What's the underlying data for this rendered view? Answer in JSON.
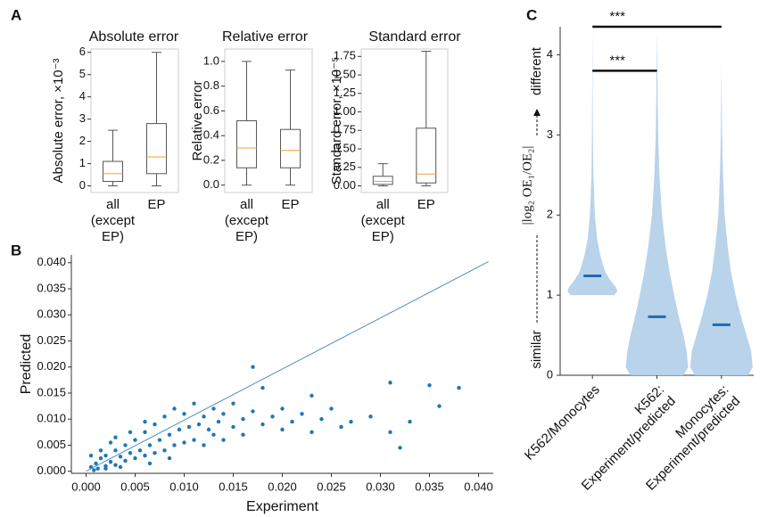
{
  "chart_data": [
    {
      "type": "box",
      "panel": "A",
      "title": "Absolute error",
      "ylabel": "Absolute error, ×10⁻³",
      "categories": [
        "all\n(except\nEP)",
        "EP"
      ],
      "boxes": [
        {
          "low": 0,
          "q1": 0.2,
          "median": 0.55,
          "q3": 1.1,
          "high": 2.5
        },
        {
          "low": 0,
          "q1": 0.55,
          "median": 1.3,
          "q3": 2.8,
          "high": 6.0
        }
      ],
      "color": "#555555",
      "median_color": "#f0a030",
      "ylim": [
        -0.3,
        6.15
      ],
      "yticks": [
        0,
        1,
        2,
        3,
        4,
        5,
        6
      ]
    },
    {
      "type": "box",
      "title": "Relative error",
      "ylabel": "Relative error",
      "categories": [
        "all\n(except\nEP)",
        "EP"
      ],
      "boxes": [
        {
          "low": 0,
          "q1": 0.14,
          "median": 0.3,
          "q3": 0.52,
          "high": 1.0
        },
        {
          "low": 0,
          "q1": 0.14,
          "median": 0.28,
          "q3": 0.45,
          "high": 0.93
        }
      ],
      "color": "#555555",
      "median_color": "#f0a030",
      "ylim": [
        -0.06,
        1.1
      ],
      "yticks": [
        {
          "value": 0,
          "label": "0.0"
        },
        0.2,
        0.4,
        0.6,
        0.8,
        {
          "value": 1,
          "label": "1.0"
        }
      ]
    },
    {
      "type": "box",
      "title": "Standard error",
      "ylabel": "Standard error, ×10⁻⁵",
      "categories": [
        "all\n(except\nEP)",
        "EP"
      ],
      "boxes": [
        {
          "low": 0,
          "q1": 0.02,
          "median": 0.06,
          "q3": 0.13,
          "high": 0.3
        },
        {
          "low": 0,
          "q1": 0.04,
          "median": 0.16,
          "q3": 0.78,
          "high": 1.82
        }
      ],
      "color": "#555555",
      "median_color": "#f0a030",
      "ylim": [
        -0.09,
        1.85
      ],
      "yticks": [
        {
          "value": 0,
          "label": "0.00"
        },
        0.25,
        {
          "value": 0.5,
          "label": "0.50"
        },
        0.75,
        {
          "value": 1,
          "label": "1.00"
        },
        1.25,
        {
          "value": 1.5,
          "label": "1.50"
        },
        1.75
      ]
    },
    {
      "type": "scatter",
      "panel": "B",
      "xlabel": "Experiment",
      "ylabel": "Predicted",
      "color": "#1f77b4",
      "x": [
        0.0005,
        0.001,
        0.0012,
        0.0015,
        0.002,
        0.002,
        0.0025,
        0.003,
        0.003,
        0.0035,
        0.004,
        0.004,
        0.0045,
        0.005,
        0.005,
        0.0055,
        0.006,
        0.006,
        0.0065,
        0.007,
        0.007,
        0.0075,
        0.008,
        0.008,
        0.0085,
        0.009,
        0.009,
        0.0095,
        0.01,
        0.01,
        0.0105,
        0.011,
        0.011,
        0.0115,
        0.012,
        0.012,
        0.0125,
        0.013,
        0.013,
        0.0135,
        0.014,
        0.014,
        0.015,
        0.015,
        0.016,
        0.016,
        0.017,
        0.017,
        0.018,
        0.018,
        0.019,
        0.02,
        0.02,
        0.021,
        0.022,
        0.023,
        0.023,
        0.024,
        0.025,
        0.026,
        0.027,
        0.029,
        0.031,
        0.031,
        0.032,
        0.033,
        0.035,
        0.036,
        0.038,
        0.002,
        0.0035,
        0.0008,
        0.003,
        0.0045,
        0.0015,
        0.006,
        0.0005,
        0.0065,
        0.0085,
        0.0025
      ],
      "y": [
        0.0008,
        0.0015,
        0.0005,
        0.0025,
        0.001,
        0.003,
        0.0018,
        0.004,
        0.0012,
        0.0028,
        0.005,
        0.002,
        0.0035,
        0.006,
        0.0025,
        0.004,
        0.0075,
        0.003,
        0.005,
        0.009,
        0.0035,
        0.006,
        0.0105,
        0.004,
        0.007,
        0.012,
        0.005,
        0.008,
        0.011,
        0.0055,
        0.0085,
        0.013,
        0.006,
        0.009,
        0.0105,
        0.005,
        0.008,
        0.012,
        0.007,
        0.0095,
        0.011,
        0.006,
        0.0085,
        0.013,
        0.01,
        0.007,
        0.02,
        0.0115,
        0.009,
        0.016,
        0.0105,
        0.008,
        0.012,
        0.0095,
        0.011,
        0.0145,
        0.0075,
        0.01,
        0.012,
        0.0085,
        0.0095,
        0.0105,
        0.017,
        0.0075,
        0.0045,
        0.0095,
        0.0165,
        0.0125,
        0.016,
        0.0005,
        0.0008,
        0.0002,
        0.0065,
        0.0075,
        0.004,
        0.0095,
        0.003,
        0.0015,
        0.0025,
        0.0055
      ],
      "reference_line": {
        "x": [
          0,
          0.041
        ],
        "y": [
          0,
          0.0402
        ],
        "color": "#4a90c2"
      },
      "xlim": [
        -0.0015,
        0.0415
      ],
      "ylim": [
        -0.0004,
        0.0415
      ],
      "xticks": [
        {
          "value": 0,
          "label": "0.000"
        },
        0.005,
        {
          "value": 0.01,
          "label": "0.010"
        },
        0.015,
        {
          "value": 0.02,
          "label": "0.020"
        },
        0.025,
        {
          "value": 0.03,
          "label": "0.030"
        },
        0.035,
        {
          "value": 0.04,
          "label": "0.040"
        }
      ],
      "yticks": [
        {
          "value": 0,
          "label": "0.000"
        },
        0.005,
        {
          "value": 0.01,
          "label": "0.010"
        },
        0.015,
        {
          "value": 0.02,
          "label": "0.020"
        },
        0.025,
        {
          "value": 0.03,
          "label": "0.030"
        },
        0.035,
        {
          "value": 0.04,
          "label": "0.040"
        }
      ]
    },
    {
      "type": "violin",
      "panel": "C",
      "ylabel_low": "similar",
      "ylabel_mid": "|log₂ OE₁/OE₂|",
      "ylabel_high": "different",
      "categories": [
        "K562/Monocytes",
        "K562:\nExperiment/predicted",
        "Monocytes:\nExperiment/predicted"
      ],
      "color": "#b8d3ea",
      "median_color": "#2369b3",
      "violins": [
        {
          "median": 1.24,
          "levels": [
            1.0,
            1.05,
            1.1,
            1.2,
            1.3,
            1.5,
            1.7,
            2.0,
            2.5,
            3.0,
            3.5,
            4.0,
            4.3
          ],
          "widths": [
            0.7,
            0.8,
            0.75,
            0.55,
            0.4,
            0.25,
            0.15,
            0.08,
            0.03,
            0.015,
            0.008,
            0.004,
            0
          ]
        },
        {
          "median": 0.73,
          "levels": [
            0,
            0.1,
            0.3,
            0.5,
            0.7,
            1.0,
            1.3,
            1.6,
            2.0,
            2.5,
            3.0,
            3.5,
            4.0,
            4.3
          ],
          "widths": [
            0.85,
            1.0,
            0.95,
            0.85,
            0.72,
            0.55,
            0.4,
            0.28,
            0.16,
            0.08,
            0.04,
            0.02,
            0.008,
            0
          ]
        },
        {
          "median": 0.63,
          "levels": [
            0,
            0.1,
            0.3,
            0.5,
            0.7,
            1.0,
            1.3,
            1.6,
            2.0,
            2.5,
            3.0,
            3.5,
            3.9
          ],
          "widths": [
            0.85,
            1.0,
            0.95,
            0.8,
            0.65,
            0.45,
            0.3,
            0.2,
            0.1,
            0.05,
            0.02,
            0.008,
            0
          ]
        }
      ],
      "significance": [
        {
          "text": "***",
          "between": [
            0,
            2
          ],
          "y": 4.35
        },
        {
          "text": "***",
          "between": [
            0,
            1
          ],
          "y": 3.8
        }
      ],
      "ylim": [
        0,
        4.35
      ],
      "yticks": [
        0,
        1,
        2,
        3,
        4
      ]
    }
  ]
}
